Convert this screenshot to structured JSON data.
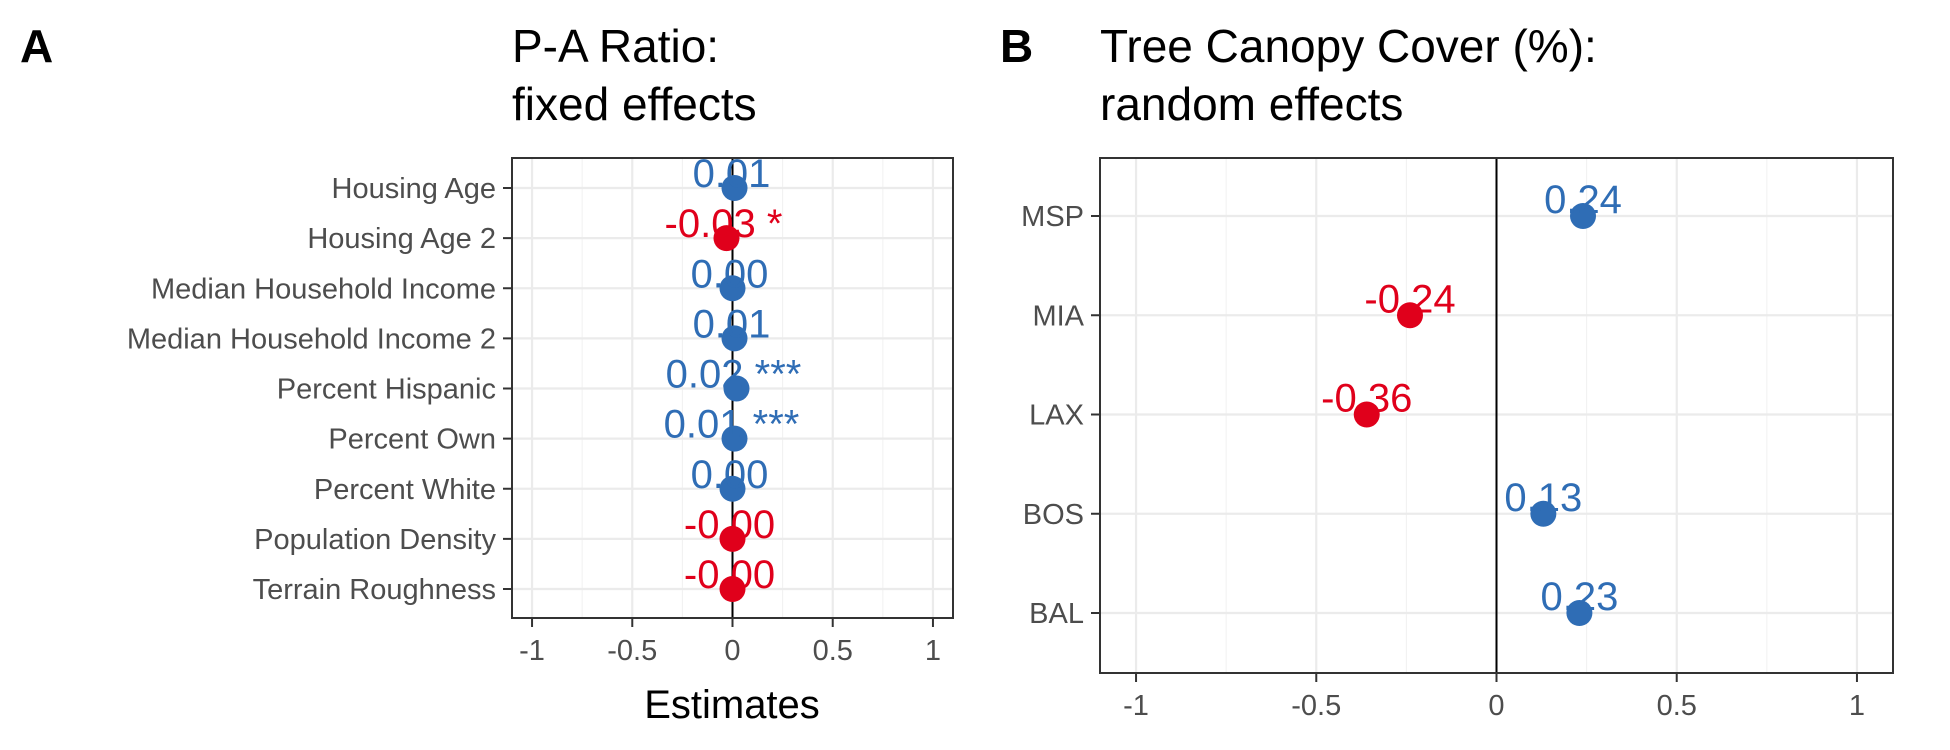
{
  "colors": {
    "positive": "#2f6db5",
    "negative": "#e0001b"
  },
  "chart_data": [
    {
      "type": "scatter",
      "panel": "A",
      "title_line1": "P-A Ratio:",
      "title_line2": "fixed effects",
      "xlabel": "Estimates",
      "ylabel": "",
      "xlim": [
        -1.1,
        1.1
      ],
      "x_ticks": [
        -1,
        -0.5,
        0,
        0.5,
        1
      ],
      "x_tick_labels": [
        "-1",
        "-0.5",
        "0",
        "0.5",
        "1"
      ],
      "grid": true,
      "zero_line": true,
      "categories": [
        "Housing Age",
        "Housing Age 2",
        "Median Household Income",
        "Median Household Income 2",
        "Percent Hispanic",
        "Percent Own",
        "Percent White",
        "Population Density",
        "Terrain Roughness"
      ],
      "values": [
        0.01,
        -0.03,
        0.0,
        0.01,
        0.02,
        0.01,
        0.0,
        -0.0,
        -0.0
      ],
      "value_labels": [
        "0.01",
        "-0.03 *",
        "0.00",
        "0.01",
        "0.02 ***",
        "0.01 ***",
        "0.00",
        "-0.00",
        "-0.00"
      ],
      "signs": [
        "pos",
        "neg",
        "pos",
        "pos",
        "pos",
        "pos",
        "pos",
        "neg",
        "neg"
      ]
    },
    {
      "type": "scatter",
      "panel": "B",
      "title_line1": "Tree Canopy Cover (%):",
      "title_line2": "random effects",
      "xlabel": "",
      "ylabel": "",
      "xlim": [
        -1.1,
        1.1
      ],
      "x_ticks": [
        -1,
        -0.5,
        0,
        0.5,
        1
      ],
      "x_tick_labels": [
        "-1",
        "-0.5",
        "0",
        "0.5",
        "1"
      ],
      "grid": true,
      "zero_line": true,
      "categories": [
        "MSP",
        "MIA",
        "LAX",
        "BOS",
        "BAL"
      ],
      "values": [
        0.24,
        -0.24,
        -0.36,
        0.13,
        0.23
      ],
      "value_labels": [
        "0.24",
        "-0.24",
        "-0.36",
        "0.13",
        "0.23"
      ],
      "signs": [
        "pos",
        "neg",
        "neg",
        "pos",
        "pos"
      ]
    }
  ]
}
